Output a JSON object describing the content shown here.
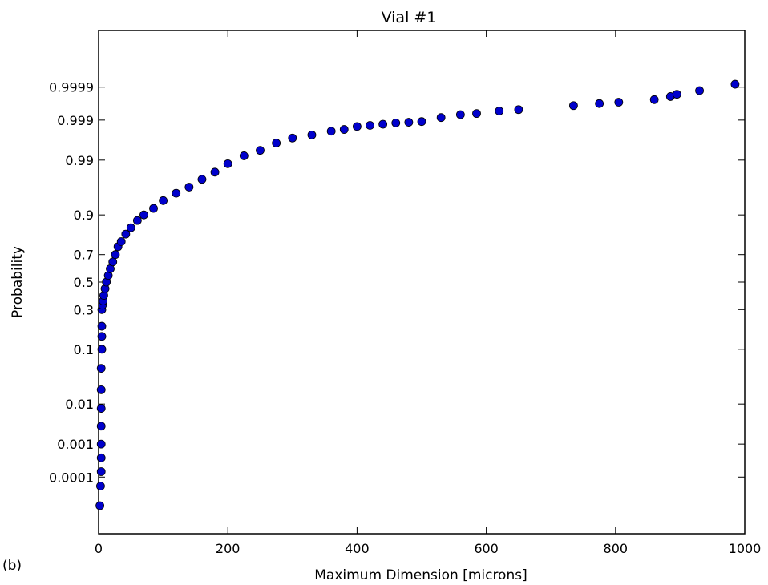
{
  "panel_label": "(b)",
  "chart_data": {
    "type": "scatter",
    "title": "Vial #1",
    "xlabel": "Maximum Dimension [microns]",
    "ylabel": "Probability",
    "xlim": [
      0,
      1000
    ],
    "yscale": "probit",
    "x_ticks": [
      0,
      200,
      400,
      600,
      800,
      1000
    ],
    "x_tick_labels": [
      "0",
      "200",
      "400",
      "600",
      "800",
      "1000"
    ],
    "y_ticks": [
      0.0001,
      0.001,
      0.01,
      0.1,
      0.3,
      0.5,
      0.7,
      0.9,
      0.99,
      0.999,
      0.9999
    ],
    "y_tick_labels": [
      "0.0001",
      "0.001",
      "0.01",
      "0.1",
      "0.3",
      "0.5",
      "0.7",
      "0.9",
      "0.99",
      "0.999",
      "0.9999"
    ],
    "grid": false,
    "marker_color": "#0000cc",
    "marker_edge": "#000000",
    "points": [
      [
        2,
        1e-05
      ],
      [
        3,
        5e-05
      ],
      [
        4,
        0.00015
      ],
      [
        4,
        0.0004
      ],
      [
        4,
        0.001
      ],
      [
        4,
        0.003
      ],
      [
        4,
        0.008
      ],
      [
        4,
        0.02
      ],
      [
        4,
        0.05
      ],
      [
        5,
        0.1
      ],
      [
        5,
        0.15
      ],
      [
        5,
        0.2
      ],
      [
        5,
        0.3
      ],
      [
        6,
        0.33
      ],
      [
        7,
        0.36
      ],
      [
        8,
        0.4
      ],
      [
        10,
        0.45
      ],
      [
        12,
        0.5
      ],
      [
        15,
        0.55
      ],
      [
        18,
        0.6
      ],
      [
        22,
        0.65
      ],
      [
        26,
        0.7
      ],
      [
        30,
        0.75
      ],
      [
        35,
        0.78
      ],
      [
        42,
        0.82
      ],
      [
        50,
        0.85
      ],
      [
        60,
        0.88
      ],
      [
        70,
        0.9
      ],
      [
        85,
        0.92
      ],
      [
        100,
        0.94
      ],
      [
        120,
        0.955
      ],
      [
        140,
        0.965
      ],
      [
        160,
        0.975
      ],
      [
        180,
        0.982
      ],
      [
        200,
        0.988
      ],
      [
        225,
        0.992
      ],
      [
        250,
        0.994
      ],
      [
        275,
        0.996
      ],
      [
        300,
        0.997
      ],
      [
        330,
        0.9975
      ],
      [
        360,
        0.998
      ],
      [
        380,
        0.9982
      ],
      [
        400,
        0.9985
      ],
      [
        420,
        0.9986
      ],
      [
        440,
        0.9987
      ],
      [
        460,
        0.9988
      ],
      [
        480,
        0.99885
      ],
      [
        500,
        0.9989
      ],
      [
        530,
        0.99915
      ],
      [
        560,
        0.9993
      ],
      [
        585,
        0.99935
      ],
      [
        620,
        0.99945
      ],
      [
        650,
        0.9995
      ],
      [
        735,
        0.99962
      ],
      [
        775,
        0.99967
      ],
      [
        805,
        0.9997
      ],
      [
        860,
        0.99975
      ],
      [
        885,
        0.9998
      ],
      [
        895,
        0.99983
      ],
      [
        930,
        0.99987
      ],
      [
        985,
        0.99992
      ]
    ]
  }
}
